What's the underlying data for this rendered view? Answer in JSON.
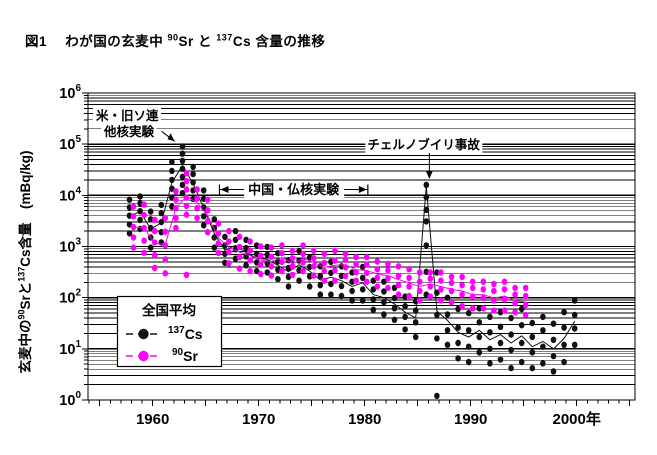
{
  "header": {
    "title_parts": [
      {
        "t": "図1　 わが国の玄麦中 "
      },
      {
        "sup": "90"
      },
      {
        "t": "Sr と "
      },
      {
        "sup": "137"
      },
      {
        "t": "Cs 含量の推移"
      }
    ]
  },
  "chart_data": {
    "type": "scatter",
    "title": "わが国の玄麦中90Srと137Cs含量の推移",
    "ylabel_parts": [
      {
        "t": "玄麦中の"
      },
      {
        "sup": "90"
      },
      {
        "t": "Srと"
      },
      {
        "sup": "137"
      },
      {
        "t": "Cs含量　(mBq/kg)"
      }
    ],
    "y_axis": {
      "scale": "log",
      "min_exp": 0,
      "max_exp": 6,
      "tick_exponents": [
        0,
        1,
        2,
        3,
        4,
        5,
        6
      ],
      "unit": "mBq/kg",
      "grid": "log-minor"
    },
    "x_axis": {
      "min": 1953.9,
      "max": 2005.5,
      "ticks": [
        {
          "year": 1960,
          "label": "1960"
        },
        {
          "year": 1970,
          "label": "1970"
        },
        {
          "year": 1980,
          "label": "1980"
        },
        {
          "year": 1990,
          "label": "1990"
        },
        {
          "year": 2000,
          "label": "2000年"
        }
      ]
    },
    "legend": {
      "title": "全国平均",
      "items": [
        {
          "series": "cs137",
          "sup": "137",
          "text": "Cs"
        },
        {
          "series": "sr90",
          "sup": "90",
          "text": "Sr"
        }
      ]
    },
    "annotations": {
      "us_ussr": {
        "lines": [
          "米・旧ソ連",
          "他核実験"
        ],
        "target": {
          "year": 1962.35,
          "value": 95000
        }
      },
      "china_france": {
        "text": "中国・仏核実験",
        "year_from": 1966.3,
        "year_to": 1980.3,
        "value": 13000
      },
      "chernobyl": {
        "text": "チェルノブイリ事故",
        "year": 1986.1,
        "value_top": 70000,
        "value_tip": 21000
      }
    },
    "series": [
      {
        "id": "cs137",
        "name": "137Cs",
        "color": "#111111",
        "dx": -2,
        "points": {
          "1958": [
            1800,
            2700,
            4000,
            5800,
            8200
          ],
          "1959": [
            2200,
            3300,
            4900,
            7000,
            9500
          ],
          "1960": [
            950,
            1500,
            2300,
            3400,
            4800
          ],
          "1961": [
            1200,
            1900,
            3000,
            4500,
            6500
          ],
          "1962": [
            6000,
            9000,
            13500,
            20000,
            30000,
            45000
          ],
          "1963": [
            11000,
            16000,
            23000,
            33000,
            47000,
            65000,
            90000
          ],
          "1964": [
            8500,
            12500,
            18000,
            26000,
            36000
          ],
          "1965": [
            2600,
            3900,
            5800,
            8600,
            12500
          ],
          "1966": [
            950,
            1500,
            2300,
            3400
          ],
          "1967": [
            480,
            720,
            1050,
            1550
          ],
          "1968": [
            580,
            880,
            1350,
            2000
          ],
          "1969": [
            430,
            640,
            930,
            1350
          ],
          "1970": [
            330,
            490,
            720,
            1050
          ],
          "1971": [
            310,
            470,
            690,
            980
          ],
          "1972": [
            230,
            350,
            510,
            740
          ],
          "1973": [
            165,
            255,
            380,
            540
          ],
          "1974": [
            215,
            340,
            530,
            820
          ],
          "1975": [
            165,
            260,
            400,
            610
          ],
          "1976": [
            115,
            175,
            265,
            410
          ],
          "1977": [
            115,
            185,
            305,
            500
          ],
          "1978": [
            108,
            168,
            265,
            410
          ],
          "1979": [
            88,
            135,
            205,
            310
          ],
          "1980": [
            88,
            145,
            245,
            400
          ],
          "1981": [
            58,
            92,
            145,
            215
          ],
          "1982": [
            47,
            82,
            132,
            205
          ],
          "1983": [
            37,
            62,
            98,
            155
          ],
          "1984": [
            24,
            42,
            68,
            105
          ],
          "1985": [
            17,
            33,
            56,
            85
          ],
          "1986": [
            115,
            320,
            1050,
            3100,
            5200,
            9200,
            16000
          ],
          "1987": [
            1.2,
            16,
            46,
            125,
            310
          ],
          "1988": [
            12,
            23,
            47,
            100
          ],
          "1989": [
            6.5,
            13,
            26,
            60
          ],
          "1990": [
            5.5,
            11,
            23,
            50
          ],
          "1991": [
            8.5,
            17,
            33,
            62
          ],
          "1992": [
            5.2,
            10,
            21,
            42
          ],
          "1993": [
            6.2,
            13,
            27,
            52
          ],
          "1994": [
            4.2,
            9.5,
            19,
            40
          ],
          "1995": [
            5.5,
            13,
            29,
            60
          ],
          "1996": [
            4.2,
            8.5,
            17,
            32
          ],
          "1997": [
            5.2,
            11,
            23,
            42
          ],
          "1998": [
            3.6,
            7.2,
            15,
            31
          ],
          "1999": [
            5.5,
            12,
            26,
            52
          ],
          "2000": [
            12,
            25,
            46,
            88
          ]
        },
        "line": {
          "1958": 3900,
          "1959": 4800,
          "1960": 2200,
          "1961": 2900,
          "1962": 18000,
          "1963": 38000,
          "1964": 17000,
          "1965": 5600,
          "1966": 1800,
          "1967": 850,
          "1968": 1050,
          "1969": 760,
          "1970": 590,
          "1971": 560,
          "1972": 430,
          "1973": 320,
          "1974": 440,
          "1975": 330,
          "1976": 220,
          "1977": 250,
          "1978": 215,
          "1979": 165,
          "1980": 195,
          "1981": 115,
          "1982": 100,
          "1983": 75,
          "1984": 52,
          "1985": 40,
          "1986": 15000,
          "1987": 55,
          "1988": 36,
          "1989": 21,
          "1990": 17,
          "1991": 23,
          "1992": 15,
          "1993": 19,
          "1994": 13,
          "1995": 18,
          "1996": 11,
          "1997": 14,
          "1998": 10,
          "1999": 16,
          "2000": 35
        }
      },
      {
        "id": "sr90",
        "name": "90Sr",
        "color": "#ff00ff",
        "dx": 2,
        "points": {
          "1958": [
            950,
            1500,
            2400,
            3900,
            6000
          ],
          "1959": [
            750,
            1300,
            2300,
            4100,
            6600
          ],
          "1960": [
            380,
            680,
            1200,
            2000,
            3300
          ],
          "1961": [
            300,
            560,
            1050,
            1950,
            3600
          ],
          "1962": [
            2300,
            3600,
            5600,
            8200,
            12000
          ],
          "1963": [
            280,
            4200,
            6200,
            9000,
            13000,
            19000,
            27000
          ],
          "1964": [
            3600,
            5600,
            8700,
            13000
          ],
          "1965": [
            1900,
            3100,
            5100,
            8200
          ],
          "1966": [
            750,
            1150,
            1800,
            2800
          ],
          "1967": [
            470,
            780,
            1250,
            2000
          ],
          "1968": [
            370,
            620,
            980,
            1550
          ],
          "1969": [
            330,
            540,
            830,
            1250
          ],
          "1970": [
            290,
            440,
            660,
            1000
          ],
          "1971": [
            270,
            410,
            630,
            950
          ],
          "1972": [
            330,
            500,
            740,
            1050
          ],
          "1973": [
            280,
            410,
            590,
            820
          ],
          "1974": [
            330,
            490,
            720,
            1050
          ],
          "1975": [
            270,
            410,
            590,
            820
          ],
          "1976": [
            215,
            330,
            480,
            720
          ],
          "1977": [
            215,
            340,
            530,
            820
          ],
          "1978": [
            265,
            390,
            550,
            720
          ],
          "1979": [
            215,
            315,
            450,
            620
          ],
          "1980": [
            205,
            305,
            440,
            620
          ],
          "1981": [
            165,
            245,
            360,
            510
          ],
          "1982": [
            155,
            235,
            340,
            460
          ],
          "1983": [
            115,
            175,
            265,
            410
          ],
          "1984": [
            108,
            165,
            245,
            360
          ],
          "1985": [
            88,
            135,
            205,
            310
          ],
          "1986": [
            105,
            165,
            235,
            310
          ],
          "1987": [
            88,
            145,
            215,
            310
          ],
          "1988": [
            82,
            135,
            195,
            255
          ],
          "1989": [
            68,
            115,
            175,
            255
          ],
          "1990": [
            62,
            105,
            155,
            205
          ],
          "1991": [
            62,
            98,
            145,
            205
          ],
          "1992": [
            56,
            88,
            135,
            185
          ],
          "1993": [
            56,
            92,
            145,
            205
          ],
          "1994": [
            52,
            78,
            115,
            155
          ],
          "1995": [
            46,
            72,
            108,
            155
          ]
        },
        "line": {
          "1958": 2400,
          "1959": 2300,
          "1960": 1150,
          "1961": 1100,
          "1962": 5600,
          "1963": 9500,
          "1964": 7200,
          "1965": 4000,
          "1966": 1500,
          "1967": 950,
          "1968": 780,
          "1969": 660,
          "1970": 540,
          "1971": 510,
          "1972": 610,
          "1973": 470,
          "1974": 580,
          "1975": 490,
          "1976": 390,
          "1977": 430,
          "1978": 440,
          "1979": 350,
          "1980": 340,
          "1981": 290,
          "1982": 270,
          "1983": 225,
          "1984": 195,
          "1985": 165,
          "1986": 185,
          "1987": 165,
          "1988": 145,
          "1989": 135,
          "1990": 115,
          "1991": 115,
          "1992": 98,
          "1993": 108,
          "1994": 88,
          "1995": 82
        }
      }
    ]
  }
}
